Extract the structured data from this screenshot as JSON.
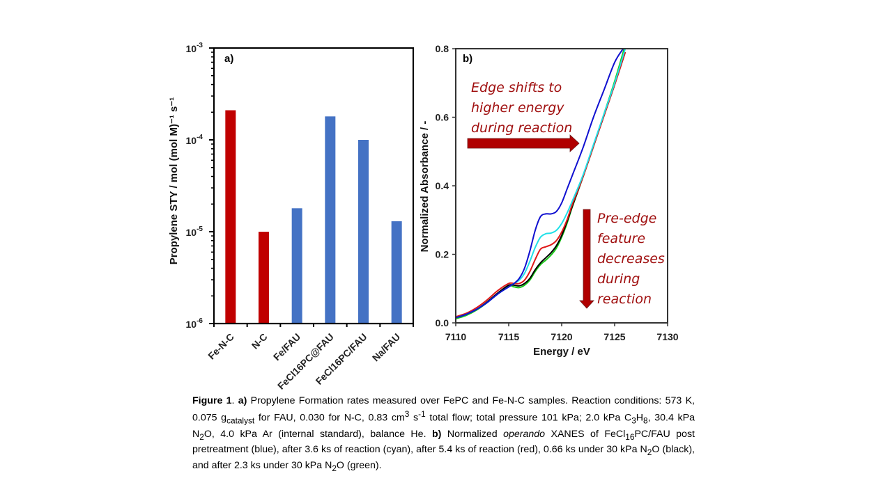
{
  "chart_data": [
    {
      "type": "bar",
      "panel_label": "a)",
      "title": "",
      "xlabel": "",
      "ylabel": "Propylene STY /  mol (mol M)⁻¹ s⁻¹",
      "yscale": "log",
      "ylim": [
        1e-06,
        0.001
      ],
      "ytick_labels": [
        {
          "base": "10",
          "exp": "-6"
        },
        {
          "base": "10",
          "exp": "-5"
        },
        {
          "base": "10",
          "exp": "-4"
        },
        {
          "base": "10",
          "exp": "-3"
        }
      ],
      "yticks": [
        1e-06,
        1e-05,
        0.0001,
        0.001
      ],
      "categories": [
        "Fe-N-C",
        "N-C",
        "Fe/FAU",
        "FeCl16PC@FAU",
        "FeCl16PC/FAU",
        "Na/FAU"
      ],
      "values": [
        0.00021,
        1e-05,
        1.8e-05,
        0.00018,
        0.0001,
        1.3e-05
      ],
      "colors": [
        "#c00000",
        "#c00000",
        "#4472c4",
        "#4472c4",
        "#4472c4",
        "#4472c4"
      ],
      "grid": false
    },
    {
      "type": "line",
      "panel_label": "b)",
      "xlabel": "Energy / eV",
      "ylabel": "Normalized Absorbance / -",
      "xlim": [
        7110,
        7130
      ],
      "ylim": [
        0.0,
        0.8
      ],
      "xticks": [
        7110,
        7115,
        7120,
        7125,
        7130
      ],
      "yticks": [
        0.0,
        0.2,
        0.4,
        0.6,
        0.8
      ],
      "ytick_labels": [
        "0.0",
        "0.2",
        "0.4",
        "0.6",
        "0.8"
      ],
      "grid": false,
      "series": [
        {
          "name": "post pretreatment",
          "color": "#1010d0",
          "x": [
            7110,
            7111,
            7112,
            7113,
            7114,
            7115,
            7115.5,
            7116,
            7116.5,
            7117,
            7117.5,
            7118,
            7118.5,
            7119,
            7119.5,
            7120,
            7120.5,
            7121,
            7122,
            7123,
            7124,
            7125,
            7125.8
          ],
          "y": [
            0.015,
            0.025,
            0.04,
            0.06,
            0.085,
            0.105,
            0.115,
            0.13,
            0.16,
            0.21,
            0.27,
            0.31,
            0.318,
            0.318,
            0.325,
            0.35,
            0.39,
            0.43,
            0.51,
            0.6,
            0.68,
            0.76,
            0.8
          ]
        },
        {
          "name": "3.6 ks reaction",
          "color": "#20e0e8",
          "x": [
            7110,
            7111,
            7112,
            7113,
            7114,
            7115,
            7115.5,
            7116,
            7116.5,
            7117,
            7117.5,
            7118,
            7118.5,
            7119,
            7119.5,
            7120,
            7120.5,
            7121,
            7122,
            7123,
            7124,
            7125,
            7126
          ],
          "y": [
            0.015,
            0.025,
            0.04,
            0.06,
            0.085,
            0.105,
            0.115,
            0.125,
            0.145,
            0.18,
            0.22,
            0.25,
            0.26,
            0.262,
            0.27,
            0.29,
            0.32,
            0.355,
            0.43,
            0.52,
            0.61,
            0.7,
            0.8
          ]
        },
        {
          "name": "5.4 ks reaction",
          "color": "#e01818",
          "x": [
            7110,
            7111,
            7112,
            7113,
            7114,
            7115,
            7115.5,
            7116,
            7116.5,
            7117,
            7117.5,
            7118,
            7118.5,
            7119,
            7119.5,
            7120,
            7120.5,
            7121,
            7122,
            7123,
            7124,
            7125,
            7126
          ],
          "y": [
            0.018,
            0.028,
            0.045,
            0.068,
            0.095,
            0.115,
            0.115,
            0.115,
            0.125,
            0.15,
            0.185,
            0.215,
            0.222,
            0.228,
            0.24,
            0.265,
            0.3,
            0.345,
            0.425,
            0.515,
            0.605,
            0.695,
            0.79
          ]
        },
        {
          "name": "0.66 ks under 30 kPa N2O",
          "color": "#000000",
          "x": [
            7110,
            7111,
            7112,
            7113,
            7114,
            7115,
            7115.5,
            7116,
            7116.5,
            7117,
            7117.5,
            7118,
            7118.5,
            7119,
            7119.5,
            7120,
            7120.5,
            7121,
            7122,
            7123,
            7124,
            7125,
            7126
          ],
          "y": [
            0.015,
            0.025,
            0.04,
            0.062,
            0.088,
            0.11,
            0.11,
            0.108,
            0.115,
            0.13,
            0.155,
            0.175,
            0.19,
            0.205,
            0.225,
            0.255,
            0.295,
            0.34,
            0.425,
            0.515,
            0.605,
            0.695,
            0.79
          ]
        },
        {
          "name": "2.3 ks under 30 kPa N2O",
          "color": "#18c818",
          "x": [
            7110,
            7111,
            7112,
            7113,
            7114,
            7115,
            7115.5,
            7116,
            7116.5,
            7117,
            7117.5,
            7118,
            7118.5,
            7119,
            7119.5,
            7120,
            7120.5,
            7121,
            7122,
            7123,
            7124,
            7125,
            7125.9
          ],
          "y": [
            0.012,
            0.022,
            0.038,
            0.06,
            0.086,
            0.108,
            0.105,
            0.103,
            0.11,
            0.125,
            0.15,
            0.17,
            0.183,
            0.198,
            0.218,
            0.25,
            0.29,
            0.338,
            0.425,
            0.515,
            0.61,
            0.705,
            0.8
          ]
        }
      ],
      "annotations": [
        {
          "lines": [
            "Edge shifts to",
            "higher energy",
            "during reaction"
          ],
          "arrow": "right"
        },
        {
          "lines": [
            "Pre-edge",
            "feature",
            "decreases",
            "during",
            "reaction"
          ],
          "arrow": "down"
        }
      ]
    }
  ],
  "caption": {
    "fig_label": "Figure 1",
    "a_label": "a)",
    "a_text_1": " Propylene Formation rates measured over FePC and Fe-N-C samples. Reaction conditions: 573 K, 0.075 g",
    "a_sub_catalyst": "catalyst",
    "a_text_2": " for FAU, 0.030 for N-C, 0.83 cm",
    "a_sup_3": "3",
    "a_text_3": " s",
    "a_sup_m1": "-1",
    "a_text_4": " total flow; total pressure 101 kPa; 2.0 kPa C",
    "c_sub": "3",
    "h_text": "H",
    "h_sub": "8",
    "a_text_5": ", 30.4 kPa N",
    "n_sub": "2",
    "a_text_6": "O, 4.0 kPa Ar (internal standard), balance He. ",
    "b_label": "b)",
    "b_text_1": " Normalized ",
    "b_italic": "operando",
    "b_text_2": " XANES of FeCl",
    "b_sub_16": "16",
    "b_text_3": "PC/FAU post pretreatment (blue), after 3.6 ks of reaction (cyan), after 5.4 ks of reaction (red), 0.66 ks under 30 kPa N",
    "b_sub_2a": "2",
    "b_text_4": "O (black), and after 2.3 ks under 30 kPa N",
    "b_sub_2b": "2",
    "b_text_5": "O (green)."
  }
}
